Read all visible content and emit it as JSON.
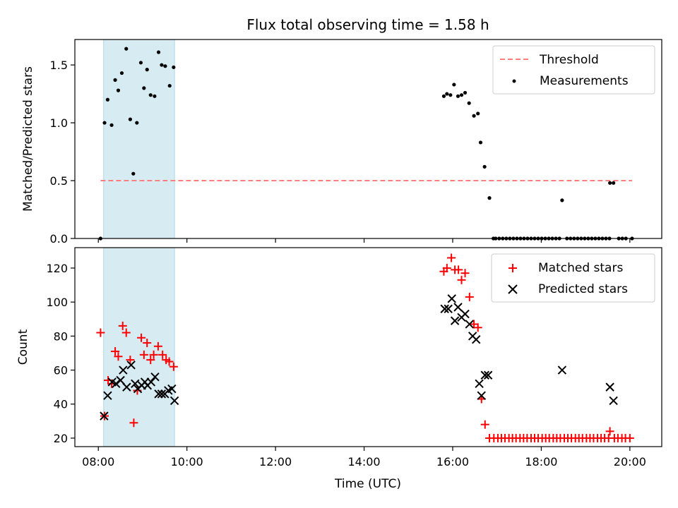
{
  "chart_data": {
    "title": "Flux total observing time = 1.58 h",
    "xlabel": "Time (UTC)",
    "x_ticks": [
      "08:00",
      "10:00",
      "12:00",
      "14:00",
      "16:00",
      "18:00",
      "20:00"
    ],
    "x_tick_hours": [
      8,
      10,
      12,
      14,
      16,
      18,
      20
    ],
    "xlim_hours": [
      7.47,
      20.72
    ],
    "shaded_span_hours": [
      8.12,
      9.72
    ],
    "shade_color": "#add8e6",
    "panels": [
      {
        "type": "scatter",
        "ylabel": "Matched/Predicted stars",
        "ylim": [
          0,
          1.72
        ],
        "y_ticks": [
          0.0,
          0.5,
          1.0,
          1.5
        ],
        "y_tick_labels": [
          "0.0",
          "0.5",
          "1.0",
          "1.5"
        ],
        "legend_position": "top-right",
        "threshold": {
          "name": "Threshold",
          "value": 0.5,
          "x_range_hours": [
            8.05,
            20.05
          ],
          "color": "#ff7f7f"
        },
        "series": [
          {
            "name": "Measurements",
            "marker": "dot",
            "color": "#000000",
            "x_hours": [
              8.05,
              8.14,
              8.21,
              8.3,
              8.38,
              8.45,
              8.53,
              8.63,
              8.72,
              8.79,
              8.87,
              8.96,
              9.03,
              9.1,
              9.18,
              9.27,
              9.36,
              9.43,
              9.51,
              9.61,
              9.7,
              15.8,
              15.87,
              15.95,
              16.03,
              16.12,
              16.2,
              16.28,
              16.37,
              16.48,
              16.57,
              16.63,
              16.72,
              16.83,
              16.92,
              19.55,
              19.63,
              16.97,
              17.05,
              17.13,
              17.21,
              17.29,
              17.37,
              17.45,
              17.53,
              17.61,
              17.69,
              17.77,
              17.85,
              17.93,
              18.01,
              18.09,
              18.17,
              18.25,
              18.33,
              18.41,
              18.47,
              18.58,
              18.66,
              18.74,
              18.82,
              18.9,
              18.98,
              19.06,
              19.14,
              19.22,
              19.3,
              19.38,
              19.46,
              19.54,
              19.75,
              19.83,
              19.91,
              20.05
            ],
            "values": [
              0.0,
              1.0,
              1.2,
              0.98,
              1.37,
              1.28,
              1.43,
              1.64,
              1.03,
              0.56,
              1.0,
              1.52,
              1.3,
              1.46,
              1.24,
              1.23,
              1.61,
              1.5,
              1.49,
              1.32,
              1.48,
              1.23,
              1.25,
              1.24,
              1.33,
              1.23,
              1.24,
              1.26,
              1.17,
              1.06,
              1.08,
              0.83,
              0.62,
              0.35,
              0.0,
              0.48,
              0.48,
              0.0,
              0.0,
              0.0,
              0.0,
              0.0,
              0.0,
              0.0,
              0.0,
              0.0,
              0.0,
              0.0,
              0.0,
              0.0,
              0.0,
              0.0,
              0.0,
              0.0,
              0.0,
              0.0,
              0.33,
              0.0,
              0.0,
              0.0,
              0.0,
              0.0,
              0.0,
              0.0,
              0.0,
              0.0,
              0.0,
              0.0,
              0.0,
              0.0,
              0.0,
              0.0,
              0.0,
              0.0
            ]
          }
        ]
      },
      {
        "type": "scatter",
        "ylabel": "Count",
        "ylim": [
          15,
          132
        ],
        "y_ticks": [
          20,
          40,
          60,
          80,
          100,
          120
        ],
        "y_tick_labels": [
          "20",
          "40",
          "60",
          "80",
          "100",
          "120"
        ],
        "legend_position": "top-right",
        "series": [
          {
            "name": "Matched stars",
            "marker": "plus",
            "color": "#ff0000",
            "x_hours": [
              8.05,
              8.14,
              8.22,
              8.3,
              8.38,
              8.45,
              8.55,
              8.63,
              8.72,
              8.8,
              8.88,
              8.97,
              9.03,
              9.1,
              9.18,
              9.25,
              9.35,
              9.45,
              9.53,
              9.6,
              9.7,
              15.8,
              15.87,
              15.97,
              16.05,
              16.13,
              16.2,
              16.28,
              16.38,
              16.48,
              16.57,
              16.65,
              16.73,
              16.83,
              16.93,
              17.02,
              17.1,
              17.18,
              17.27,
              17.35,
              17.43,
              17.52,
              17.6,
              17.68,
              17.77,
              17.85,
              17.93,
              18.02,
              18.1,
              18.18,
              18.27,
              18.35,
              18.43,
              18.52,
              18.6,
              18.68,
              18.77,
              18.85,
              18.93,
              19.02,
              19.1,
              19.18,
              19.27,
              19.35,
              19.43,
              19.52,
              19.55,
              19.65,
              19.73,
              19.82,
              19.9,
              20.0
            ],
            "values": [
              82,
              33,
              54,
              52,
              71,
              68,
              86,
              82,
              66,
              29,
              48,
              79,
              69,
              76,
              66,
              69,
              74,
              69,
              66,
              65,
              62,
              118,
              120,
              126,
              119,
              119,
              113,
              117,
              103,
              87,
              85,
              43,
              28,
              20,
              20,
              20,
              20,
              20,
              20,
              20,
              20,
              20,
              20,
              20,
              20,
              20,
              20,
              20,
              20,
              20,
              20,
              20,
              20,
              20,
              20,
              20,
              20,
              20,
              20,
              20,
              20,
              20,
              20,
              20,
              20,
              20,
              24,
              20,
              20,
              20,
              20,
              20
            ]
          },
          {
            "name": "Predicted stars",
            "marker": "x",
            "color": "#000000",
            "x_hours": [
              8.13,
              8.21,
              8.31,
              8.4,
              8.5,
              8.56,
              8.64,
              8.74,
              8.83,
              8.89,
              8.98,
              9.05,
              9.11,
              9.19,
              9.28,
              9.36,
              9.43,
              9.5,
              9.58,
              9.66,
              9.72,
              15.82,
              15.9,
              15.98,
              16.05,
              16.12,
              16.2,
              16.28,
              16.38,
              16.45,
              16.53,
              16.6,
              16.65,
              16.73,
              16.8,
              18.47,
              19.55,
              19.63
            ],
            "values": [
              33,
              45,
              53,
              52,
              54,
              60,
              50,
              63,
              52,
              49,
              51,
              53,
              51,
              53,
              56,
              46,
              46,
              46,
              48,
              49,
              42,
              96,
              96,
              102,
              89,
              97,
              91,
              93,
              87,
              80,
              78,
              52,
              45,
              57,
              57,
              60,
              50,
              42
            ]
          }
        ]
      }
    ]
  }
}
